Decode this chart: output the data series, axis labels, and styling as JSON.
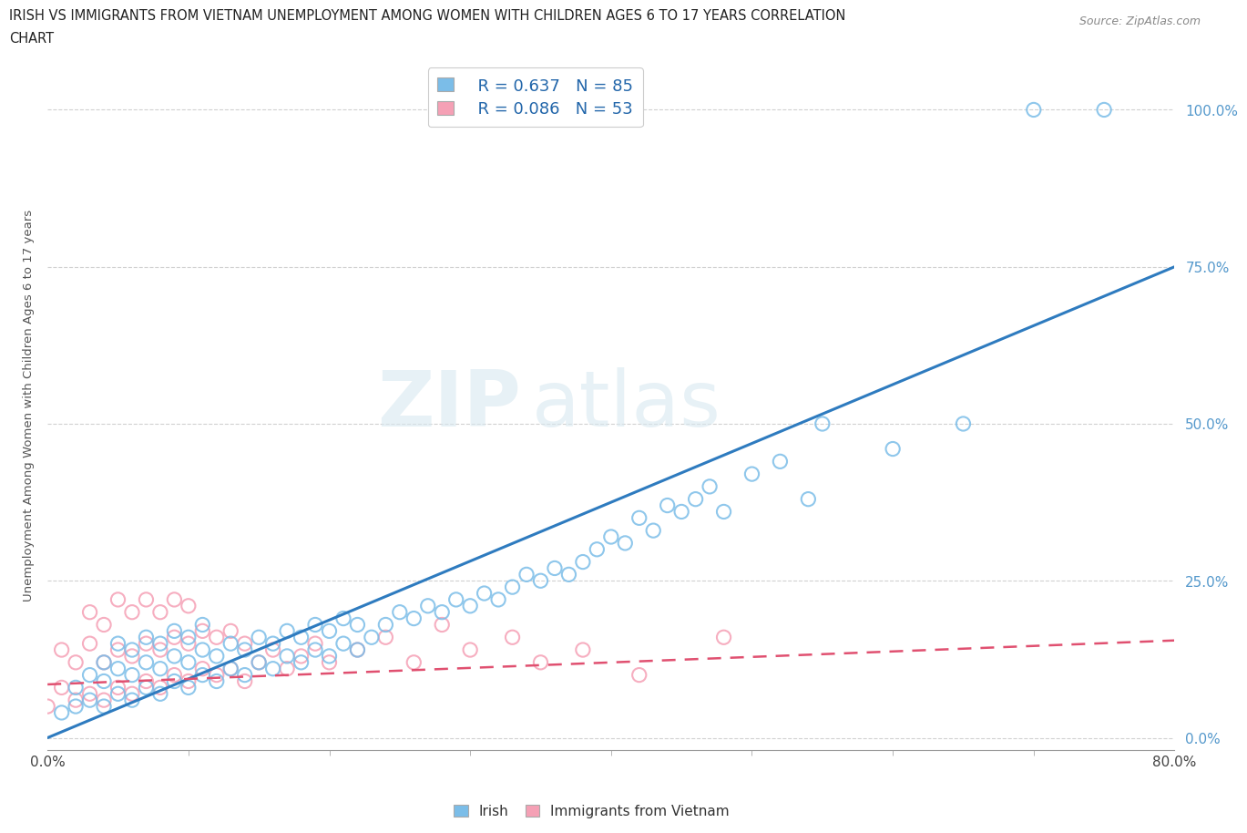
{
  "title_line1": "IRISH VS IMMIGRANTS FROM VIETNAM UNEMPLOYMENT AMONG WOMEN WITH CHILDREN AGES 6 TO 17 YEARS CORRELATION",
  "title_line2": "CHART",
  "source_text": "Source: ZipAtlas.com",
  "xlabel_bottom_left": "0.0%",
  "xlabel_bottom_right": "80.0%",
  "ylabel": "Unemployment Among Women with Children Ages 6 to 17 years",
  "legend_irish_R": "R = 0.637",
  "legend_irish_N": "N = 85",
  "legend_vietnam_R": "R = 0.086",
  "legend_vietnam_N": "N = 53",
  "x_min": 0.0,
  "x_max": 0.8,
  "y_min": -0.02,
  "y_max": 1.08,
  "y_ticks": [
    0.0,
    0.25,
    0.5,
    0.75,
    1.0
  ],
  "y_tick_labels": [
    "0.0%",
    "25.0%",
    "50.0%",
    "75.0%",
    "100.0%"
  ],
  "irish_color": "#7bbde8",
  "vietnam_color": "#f5a0b5",
  "irish_line_color": "#2e7bbf",
  "vietnam_line_color": "#e05070",
  "watermark_zip": "ZIP",
  "watermark_atlas": "atlas",
  "background_color": "#ffffff",
  "irish_line_x": [
    0.0,
    0.8
  ],
  "irish_line_y": [
    0.0,
    0.75
  ],
  "vietnam_line_x": [
    0.0,
    0.8
  ],
  "vietnam_line_y": [
    0.085,
    0.155
  ],
  "irish_scatter_x": [
    0.01,
    0.02,
    0.02,
    0.03,
    0.03,
    0.04,
    0.04,
    0.04,
    0.05,
    0.05,
    0.05,
    0.06,
    0.06,
    0.06,
    0.07,
    0.07,
    0.07,
    0.08,
    0.08,
    0.08,
    0.09,
    0.09,
    0.09,
    0.1,
    0.1,
    0.1,
    0.11,
    0.11,
    0.11,
    0.12,
    0.12,
    0.13,
    0.13,
    0.14,
    0.14,
    0.15,
    0.15,
    0.16,
    0.16,
    0.17,
    0.17,
    0.18,
    0.18,
    0.19,
    0.19,
    0.2,
    0.2,
    0.21,
    0.21,
    0.22,
    0.22,
    0.23,
    0.24,
    0.25,
    0.26,
    0.27,
    0.28,
    0.29,
    0.3,
    0.31,
    0.32,
    0.33,
    0.34,
    0.35,
    0.36,
    0.37,
    0.38,
    0.39,
    0.4,
    0.41,
    0.42,
    0.43,
    0.44,
    0.45,
    0.46,
    0.47,
    0.48,
    0.5,
    0.52,
    0.54,
    0.55,
    0.6,
    0.65,
    0.7,
    0.75
  ],
  "irish_scatter_y": [
    0.04,
    0.05,
    0.08,
    0.06,
    0.1,
    0.05,
    0.09,
    0.12,
    0.07,
    0.11,
    0.15,
    0.06,
    0.1,
    0.14,
    0.08,
    0.12,
    0.16,
    0.07,
    0.11,
    0.15,
    0.09,
    0.13,
    0.17,
    0.08,
    0.12,
    0.16,
    0.1,
    0.14,
    0.18,
    0.09,
    0.13,
    0.11,
    0.15,
    0.1,
    0.14,
    0.12,
    0.16,
    0.11,
    0.15,
    0.13,
    0.17,
    0.12,
    0.16,
    0.14,
    0.18,
    0.13,
    0.17,
    0.15,
    0.19,
    0.14,
    0.18,
    0.16,
    0.18,
    0.2,
    0.19,
    0.21,
    0.2,
    0.22,
    0.21,
    0.23,
    0.22,
    0.24,
    0.26,
    0.25,
    0.27,
    0.26,
    0.28,
    0.3,
    0.32,
    0.31,
    0.35,
    0.33,
    0.37,
    0.36,
    0.38,
    0.4,
    0.36,
    0.42,
    0.44,
    0.38,
    0.5,
    0.46,
    0.5,
    1.0,
    1.0
  ],
  "vietnam_scatter_x": [
    0.0,
    0.01,
    0.01,
    0.02,
    0.02,
    0.03,
    0.03,
    0.03,
    0.04,
    0.04,
    0.04,
    0.05,
    0.05,
    0.05,
    0.06,
    0.06,
    0.06,
    0.07,
    0.07,
    0.07,
    0.08,
    0.08,
    0.08,
    0.09,
    0.09,
    0.09,
    0.1,
    0.1,
    0.1,
    0.11,
    0.11,
    0.12,
    0.12,
    0.13,
    0.13,
    0.14,
    0.14,
    0.15,
    0.16,
    0.17,
    0.18,
    0.19,
    0.2,
    0.22,
    0.24,
    0.26,
    0.28,
    0.3,
    0.33,
    0.35,
    0.38,
    0.42,
    0.48
  ],
  "vietnam_scatter_y": [
    0.05,
    0.08,
    0.14,
    0.06,
    0.12,
    0.07,
    0.15,
    0.2,
    0.06,
    0.12,
    0.18,
    0.08,
    0.14,
    0.22,
    0.07,
    0.13,
    0.2,
    0.09,
    0.15,
    0.22,
    0.08,
    0.14,
    0.2,
    0.1,
    0.16,
    0.22,
    0.09,
    0.15,
    0.21,
    0.11,
    0.17,
    0.1,
    0.16,
    0.11,
    0.17,
    0.09,
    0.15,
    0.12,
    0.14,
    0.11,
    0.13,
    0.15,
    0.12,
    0.14,
    0.16,
    0.12,
    0.18,
    0.14,
    0.16,
    0.12,
    0.14,
    0.1,
    0.16
  ]
}
